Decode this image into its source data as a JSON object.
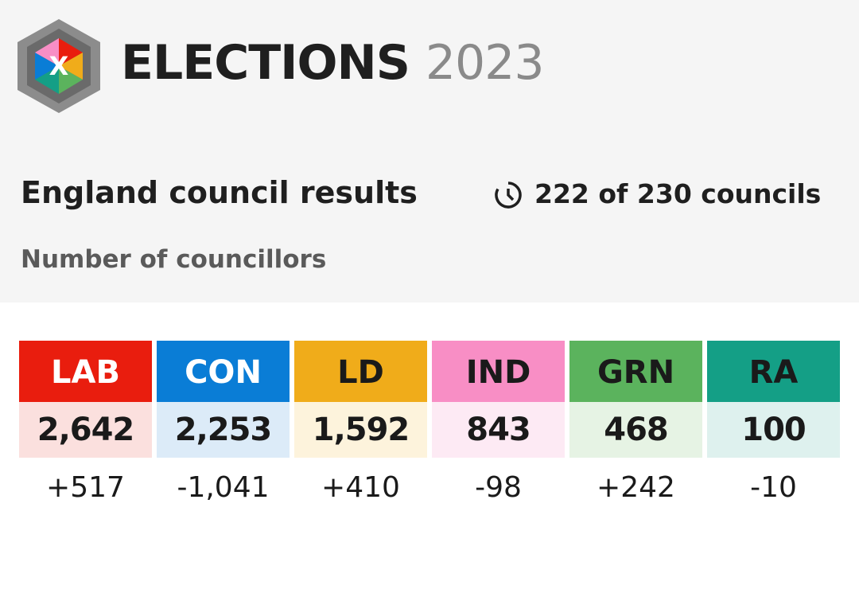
{
  "header": {
    "logo": "X",
    "title": "ELECTIONS",
    "year": "2023"
  },
  "subtitle": "England council results",
  "progress": "222 of 230 councils",
  "measure": "Number of councillors",
  "parties": [
    {
      "name": "LAB",
      "seats": "2,642",
      "change": "+517"
    },
    {
      "name": "CON",
      "seats": "2,253",
      "change": "-1,041"
    },
    {
      "name": "LD",
      "seats": "1,592",
      "change": "+410"
    },
    {
      "name": "IND",
      "seats": "843",
      "change": "-98"
    },
    {
      "name": "GRN",
      "seats": "468",
      "change": "+242"
    },
    {
      "name": "RA",
      "seats": "100",
      "change": "-10"
    }
  ]
}
